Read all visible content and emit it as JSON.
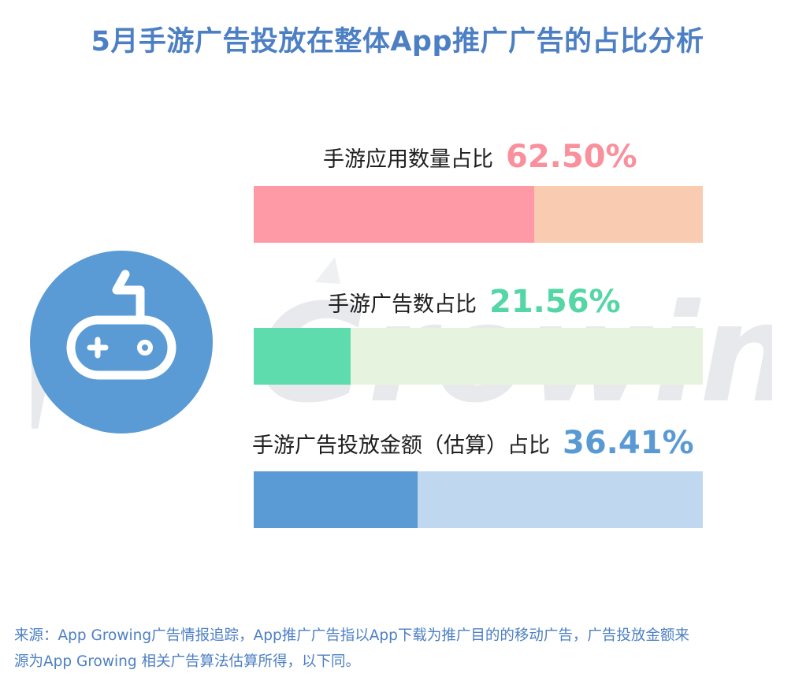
{
  "title": "5月手游广告投放在整体App推广广告的占比分析",
  "watermark_text": "App Growing",
  "chart_data": {
    "type": "bar",
    "orientation": "horizontal",
    "title": "5月手游广告投放在整体App推广广告的占比分析",
    "ylim": [
      0,
      100
    ],
    "categories": [
      "手游应用数量占比",
      "手游广告数占比",
      "手游广告投放金额（估算）占比"
    ],
    "values": [
      62.5,
      21.56,
      36.41
    ],
    "value_labels": [
      "62.50%",
      "21.56%",
      "36.41%"
    ],
    "fill_colors": [
      "#fd9aa5",
      "#5fdcae",
      "#5b9bd5"
    ],
    "track_colors": [
      "#f9cbb1",
      "#e6f4df",
      "#bfd8f0"
    ],
    "label_colors": [
      "#f9909c",
      "#54d6a6",
      "#5a9ad4"
    ]
  },
  "icon": "gamepad-icon",
  "footnote": {
    "line1": "来源：App Growing广告情报追踪，App推广广告指以App下载为推广目的的移动广告，广告投放金额来",
    "line2": "源为App Growing 相关广告算法估算所得，以下同。"
  }
}
